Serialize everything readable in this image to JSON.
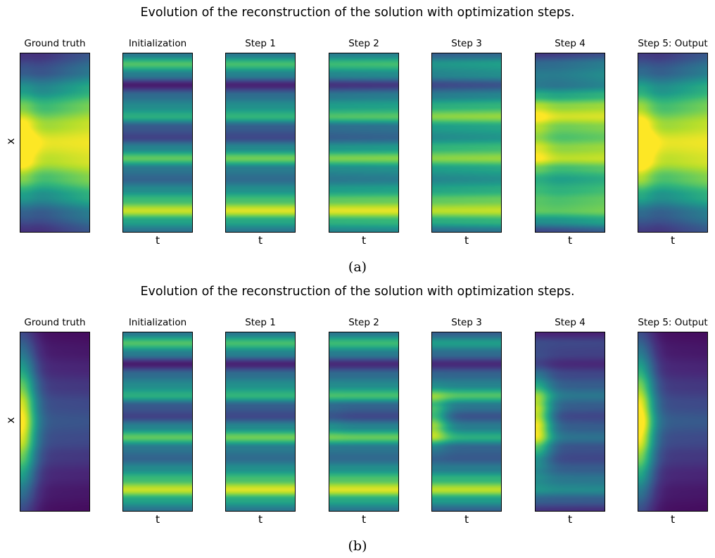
{
  "chart_data": [
    {
      "type": "heatmap",
      "title": "Evolution of the reconstruction of the solution with optimization steps.",
      "caption": "(a)",
      "xlabel": "t",
      "ylabel": "x",
      "colormap": "viridis",
      "panels": [
        {
          "title": "Ground truth",
          "profile": [
            0.08,
            0.18,
            0.38,
            0.6,
            0.8,
            0.95,
            0.85,
            0.62,
            0.4,
            0.2,
            0.08
          ],
          "x_growth": 0.55,
          "left_band": 0.4,
          "left_strength": 0.25
        },
        {
          "title": "Initialization",
          "profile": [
            0.4,
            0.72,
            0.42,
            0.08,
            0.35,
            0.48,
            0.62,
            0.28,
            0.2,
            0.45,
            0.75,
            0.4,
            0.32,
            0.48,
            0.68,
            0.92,
            0.58,
            0.38
          ],
          "x_growth": 0.0,
          "left_band": 0.0,
          "left_strength": 0.0
        },
        {
          "title": "Step 1",
          "profile": [
            0.4,
            0.7,
            0.44,
            0.1,
            0.36,
            0.5,
            0.65,
            0.3,
            0.22,
            0.47,
            0.78,
            0.42,
            0.35,
            0.5,
            0.7,
            0.95,
            0.6,
            0.4
          ],
          "x_growth": 0.0,
          "left_band": 0.0,
          "left_strength": 0.0
        },
        {
          "title": "Step 2",
          "profile": [
            0.42,
            0.68,
            0.46,
            0.15,
            0.4,
            0.55,
            0.72,
            0.36,
            0.3,
            0.52,
            0.8,
            0.48,
            0.4,
            0.55,
            0.75,
            0.96,
            0.65,
            0.45
          ],
          "x_growth": 0.05,
          "left_band": 0.0,
          "left_strength": 0.0
        },
        {
          "title": "Step 3",
          "profile": [
            0.3,
            0.52,
            0.45,
            0.22,
            0.42,
            0.62,
            0.82,
            0.55,
            0.48,
            0.65,
            0.82,
            0.55,
            0.46,
            0.58,
            0.75,
            0.9,
            0.62,
            0.35
          ],
          "x_growth": 0.1,
          "left_band": 0.0,
          "left_strength": 0.0
        },
        {
          "title": "Step 4",
          "profile": [
            0.15,
            0.32,
            0.38,
            0.35,
            0.55,
            0.8,
            0.92,
            0.75,
            0.68,
            0.8,
            0.88,
            0.65,
            0.52,
            0.6,
            0.68,
            0.72,
            0.48,
            0.2
          ],
          "x_growth": 0.25,
          "left_band": 0.3,
          "left_strength": 0.15
        },
        {
          "title": "Step 5: Output",
          "profile": [
            0.1,
            0.22,
            0.42,
            0.62,
            0.8,
            0.95,
            0.86,
            0.64,
            0.42,
            0.22,
            0.1
          ],
          "x_growth": 0.5,
          "left_band": 0.4,
          "left_strength": 0.3
        }
      ]
    },
    {
      "type": "heatmap",
      "title": "Evolution of the reconstruction of the solution with optimization steps.",
      "caption": "(b)",
      "xlabel": "t",
      "ylabel": "x",
      "colormap": "viridis",
      "panels": [
        {
          "title": "Ground truth",
          "profile": [
            0.05,
            0.08,
            0.12,
            0.18,
            0.24,
            0.28,
            0.24,
            0.18,
            0.12,
            0.08,
            0.05
          ],
          "x_growth": -0.05,
          "left_band": 0.4,
          "left_strength": 0.75
        },
        {
          "title": "Initialization",
          "profile": [
            0.4,
            0.72,
            0.42,
            0.08,
            0.35,
            0.48,
            0.62,
            0.28,
            0.2,
            0.45,
            0.75,
            0.4,
            0.32,
            0.48,
            0.68,
            0.92,
            0.58,
            0.38
          ],
          "x_growth": 0.0,
          "left_band": 0.0,
          "left_strength": 0.0
        },
        {
          "title": "Step 1",
          "profile": [
            0.4,
            0.7,
            0.44,
            0.1,
            0.36,
            0.5,
            0.65,
            0.3,
            0.22,
            0.47,
            0.78,
            0.42,
            0.35,
            0.5,
            0.7,
            0.95,
            0.6,
            0.4
          ],
          "x_growth": 0.0,
          "left_band": 0.0,
          "left_strength": 0.0
        },
        {
          "title": "Step 2",
          "profile": [
            0.4,
            0.68,
            0.42,
            0.12,
            0.35,
            0.48,
            0.7,
            0.32,
            0.22,
            0.45,
            0.76,
            0.4,
            0.34,
            0.5,
            0.72,
            0.95,
            0.6,
            0.4
          ],
          "x_growth": 0.0,
          "left_band": 0.0,
          "left_strength": 0.05
        },
        {
          "title": "Step 3",
          "profile": [
            0.3,
            0.55,
            0.35,
            0.12,
            0.32,
            0.45,
            0.72,
            0.4,
            0.26,
            0.42,
            0.62,
            0.32,
            0.28,
            0.42,
            0.65,
            0.9,
            0.55,
            0.32
          ],
          "x_growth": 0.0,
          "left_band": 0.08,
          "left_strength": 0.45
        },
        {
          "title": "Step 4",
          "profile": [
            0.1,
            0.22,
            0.2,
            0.12,
            0.22,
            0.3,
            0.4,
            0.3,
            0.22,
            0.3,
            0.38,
            0.26,
            0.22,
            0.3,
            0.4,
            0.48,
            0.3,
            0.15
          ],
          "x_growth": -0.02,
          "left_band": 0.2,
          "left_strength": 0.7
        },
        {
          "title": "Step 5: Output",
          "profile": [
            0.05,
            0.08,
            0.12,
            0.18,
            0.24,
            0.3,
            0.24,
            0.18,
            0.12,
            0.08,
            0.05
          ],
          "x_growth": -0.05,
          "left_band": 0.4,
          "left_strength": 0.8
        }
      ]
    }
  ]
}
